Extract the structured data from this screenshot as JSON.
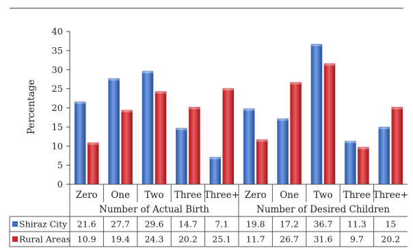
{
  "chart_data": {
    "type": "bar",
    "ylabel": "Percentage",
    "ylim": [
      0,
      40
    ],
    "yticks": [
      0,
      5,
      10,
      15,
      20,
      25,
      30,
      35,
      40
    ],
    "grid": false,
    "legend": "data-table-left",
    "groups": [
      {
        "label": "Number of Actual Birth",
        "categories": [
          "Zero",
          "One",
          "Two",
          "Three",
          "Three+"
        ]
      },
      {
        "label": "Number of Desired Children",
        "categories": [
          "Zero",
          "One",
          "Two",
          "Three",
          "Three+"
        ]
      }
    ],
    "series": [
      {
        "name": "Shiraz City",
        "color": "#3f6fc4",
        "values": [
          21.6,
          27.7,
          29.6,
          14.7,
          7.1,
          19.8,
          17.2,
          36.7,
          11.3,
          15
        ],
        "labels": [
          "21.6",
          "27.7",
          "29.6",
          "14.7",
          "7.1",
          "19.8",
          "17.2",
          "36.7",
          "11.3",
          "15"
        ]
      },
      {
        "name": "Rural Areas",
        "color": "#d4262a",
        "values": [
          10.9,
          19.4,
          24.3,
          20.2,
          25.1,
          11.7,
          26.7,
          31.6,
          9.7,
          20.2
        ],
        "labels": [
          "10.9",
          "19.4",
          "24.3",
          "20.2",
          "25.1",
          "11.7",
          "26.7",
          "31.6",
          "9.7",
          "20.2"
        ]
      }
    ]
  }
}
